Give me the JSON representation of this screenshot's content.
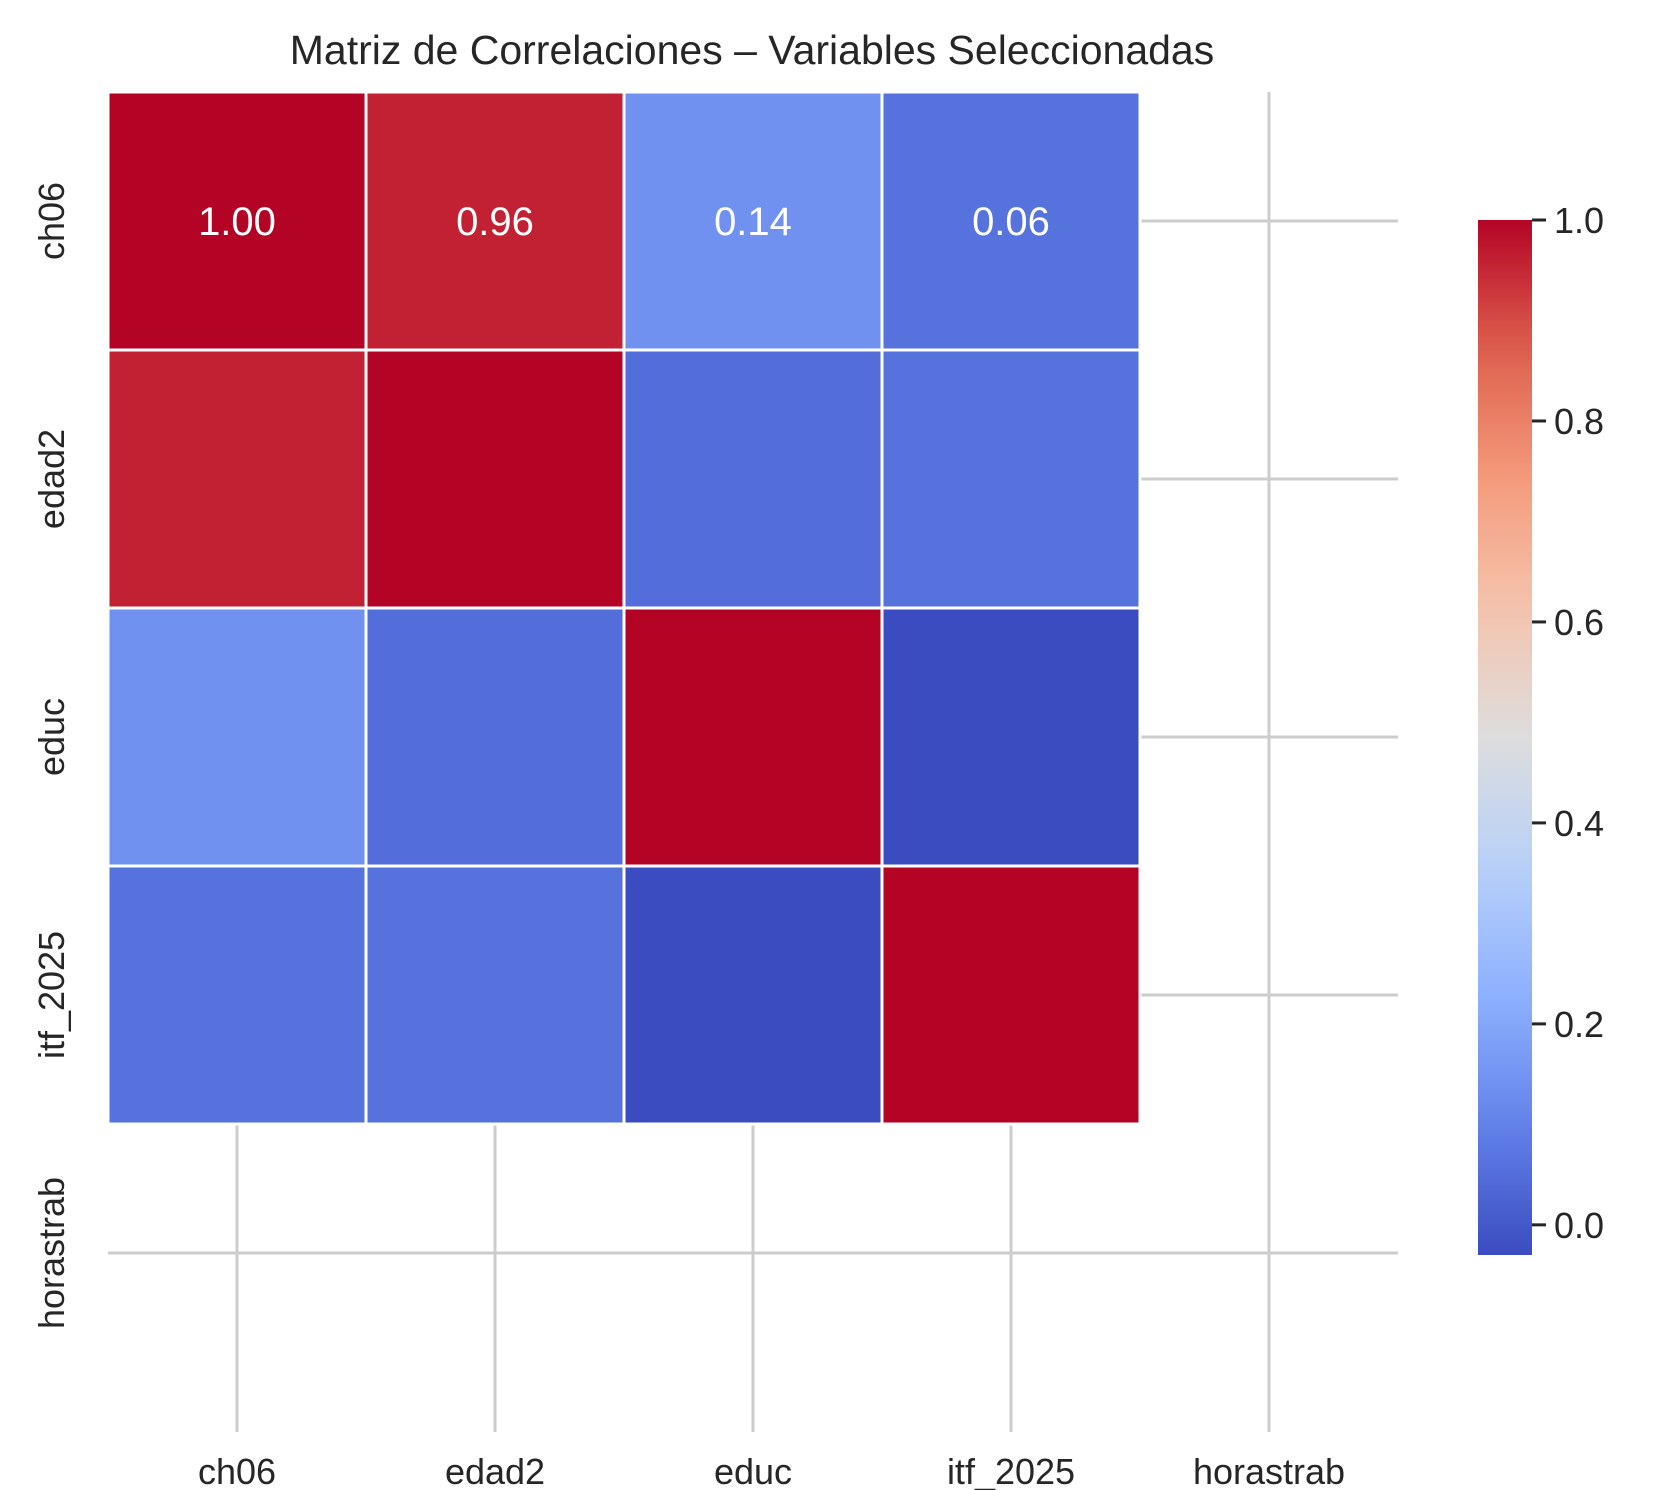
{
  "chart_data": {
    "type": "heatmap",
    "title": "Matriz de Correlaciones – Variables Seleccionadas",
    "xlabel": "",
    "ylabel": "",
    "variables": [
      "ch06",
      "edad2",
      "educ",
      "itf_2025",
      "horastrab"
    ],
    "matrix": [
      [
        1.0,
        0.96,
        0.14,
        0.06,
        null
      ],
      [
        0.96,
        1.0,
        0.05,
        0.06,
        null
      ],
      [
        0.14,
        0.05,
        1.0,
        -0.03,
        null
      ],
      [
        0.06,
        0.06,
        -0.03,
        1.0,
        null
      ],
      [
        null,
        null,
        null,
        null,
        null
      ]
    ],
    "annotations": [
      {
        "row": 0,
        "col": 0,
        "text": "1.00"
      },
      {
        "row": 0,
        "col": 1,
        "text": "0.96"
      },
      {
        "row": 0,
        "col": 2,
        "text": "0.14"
      },
      {
        "row": 0,
        "col": 3,
        "text": "0.06"
      }
    ],
    "colormap": "coolwarm",
    "vmin": -0.03,
    "vmax": 1.0,
    "colorbar": {
      "ticks": [
        0.0,
        0.2,
        0.4,
        0.6,
        0.8,
        1.0
      ],
      "tick_labels": [
        "0.0",
        "0.2",
        "0.4",
        "0.6",
        "0.8",
        "1.0"
      ],
      "placement": "right"
    },
    "grid": true,
    "colors": {
      "low": "#3b4cc0",
      "mid": "#dddddd",
      "high": "#b40426"
    }
  }
}
